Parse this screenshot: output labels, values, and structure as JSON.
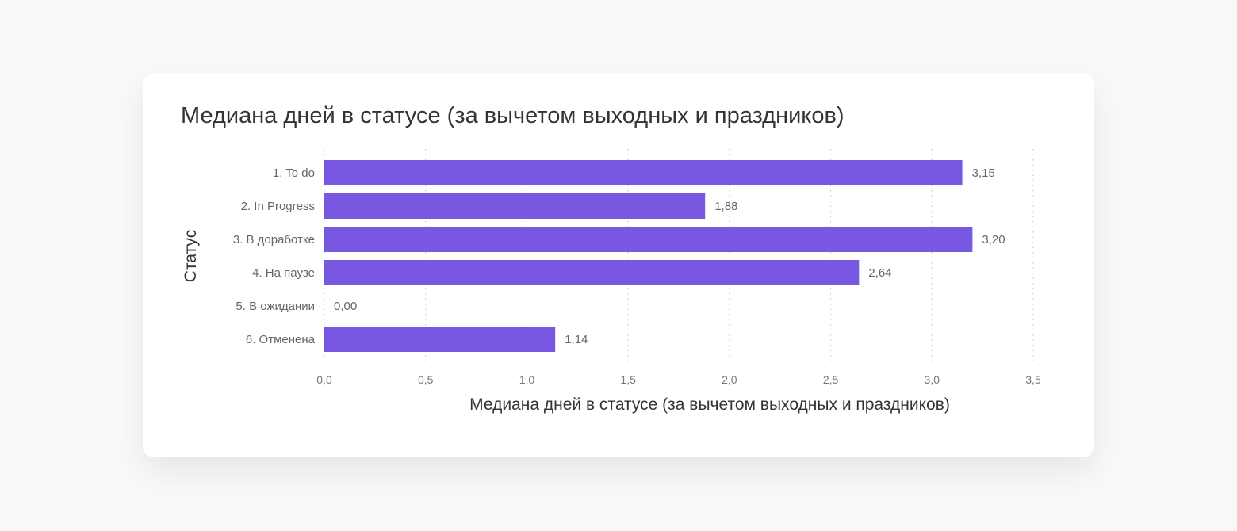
{
  "chart_data": {
    "type": "bar",
    "orientation": "horizontal",
    "title": "Медиана дней в статусе (за вычетом выходных и праздников)",
    "xlabel": "Медиана дней в статусе (за вычетом выходных и праздников)",
    "ylabel": "Статус",
    "categories": [
      "1. To do",
      "2. In Progress",
      "3. В доработке",
      "4. На паузе",
      "5. В ожидании",
      "6. Отменена"
    ],
    "values": [
      3.15,
      1.88,
      3.2,
      2.64,
      0.0,
      1.14
    ],
    "data_labels": [
      "3,15",
      "1,88",
      "3,20",
      "2,64",
      "0,00",
      "1,14"
    ],
    "xlim": [
      0,
      3.5
    ],
    "xticks": [
      0,
      0.5,
      1,
      1.5,
      2,
      2.5,
      3,
      3.5
    ],
    "xtick_labels": [
      "0,0",
      "0,5",
      "1,0",
      "1,5",
      "2,0",
      "2,5",
      "3,0",
      "3,5"
    ],
    "grid": "vertical dotted",
    "bar_color": "#7858e0",
    "legend": "none"
  }
}
